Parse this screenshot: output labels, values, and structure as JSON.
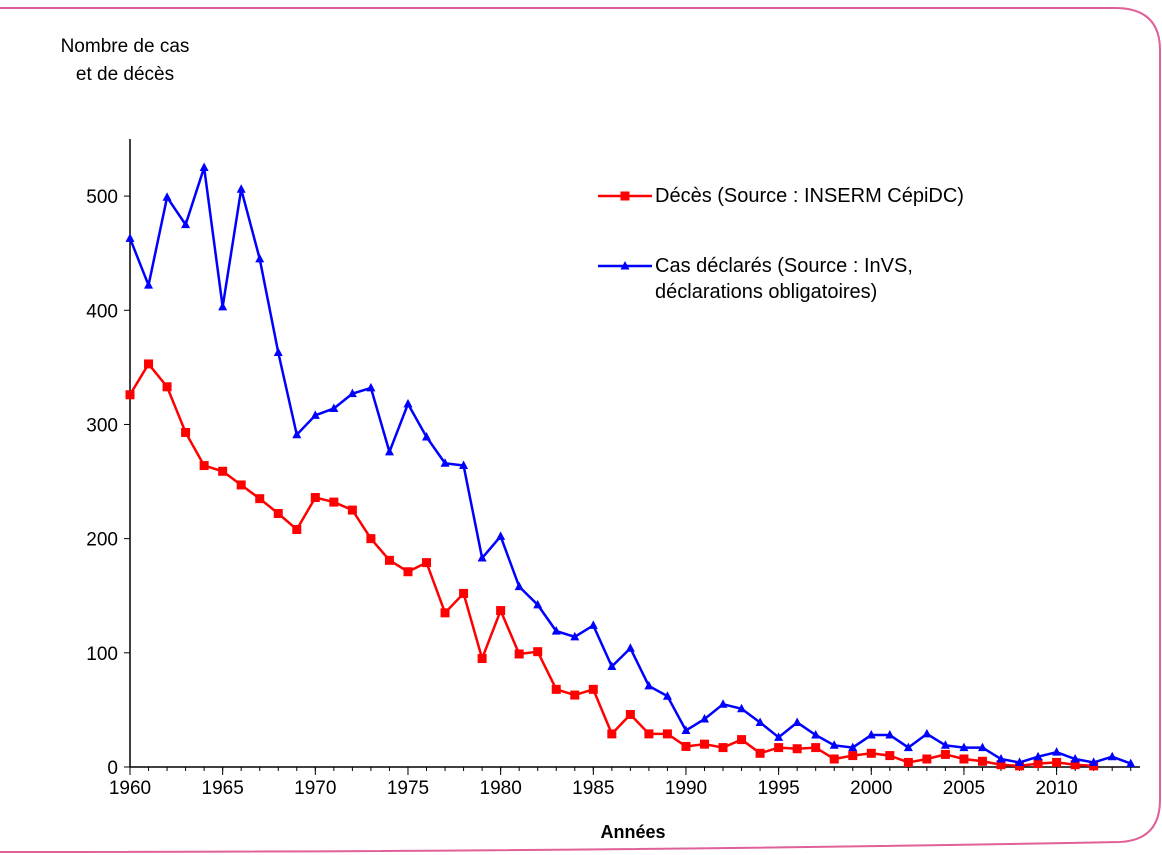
{
  "chart_data": {
    "type": "line",
    "y_label": [
      "Nombre de cas",
      "et de décès"
    ],
    "x_label": "Années",
    "x": [
      1960,
      1961,
      1962,
      1963,
      1964,
      1965,
      1966,
      1967,
      1968,
      1969,
      1970,
      1971,
      1972,
      1973,
      1974,
      1975,
      1976,
      1977,
      1978,
      1979,
      1980,
      1981,
      1982,
      1983,
      1984,
      1985,
      1986,
      1987,
      1988,
      1989,
      1990,
      1991,
      1992,
      1993,
      1994,
      1995,
      1996,
      1997,
      1998,
      1999,
      2000,
      2001,
      2002,
      2003,
      2004,
      2005,
      2006,
      2007,
      2008,
      2009,
      2010,
      2011,
      2012,
      2013,
      2014
    ],
    "series": [
      {
        "name": "Décès (Source : INSERM CépiDC)",
        "color": "#ff0000",
        "marker": "square",
        "values": [
          326,
          353,
          333,
          293,
          264,
          259,
          247,
          235,
          222,
          208,
          236,
          232,
          225,
          200,
          181,
          171,
          179,
          135,
          152,
          95,
          137,
          99,
          101,
          68,
          63,
          68,
          29,
          46,
          29,
          29,
          18,
          20,
          17,
          24,
          12,
          17,
          16,
          17,
          7,
          10,
          12,
          10,
          4,
          7,
          11,
          7,
          5,
          2,
          1,
          3,
          4,
          2,
          1,
          null,
          null
        ]
      },
      {
        "name": "Cas déclarés (Source : InVS, déclarations obligatoires)",
        "color": "#0000ff",
        "marker": "triangle",
        "values": [
          463,
          422,
          499,
          475,
          525,
          403,
          506,
          445,
          363,
          291,
          308,
          314,
          327,
          332,
          276,
          318,
          289,
          266,
          264,
          183,
          202,
          158,
          142,
          119,
          114,
          124,
          88,
          104,
          71,
          62,
          32,
          42,
          55,
          51,
          39,
          26,
          39,
          28,
          19,
          17,
          28,
          28,
          17,
          29,
          19,
          17,
          17,
          7,
          4,
          9,
          13,
          7,
          4,
          9,
          3
        ]
      }
    ],
    "xlim": [
      1960,
      2014.5
    ],
    "xticks": [
      1960,
      1965,
      1970,
      1975,
      1980,
      1985,
      1990,
      1995,
      2000,
      2005,
      2010
    ],
    "ylim": [
      0,
      550
    ],
    "yticks": [
      0,
      100,
      200,
      300,
      400,
      500
    ],
    "grid": false
  }
}
